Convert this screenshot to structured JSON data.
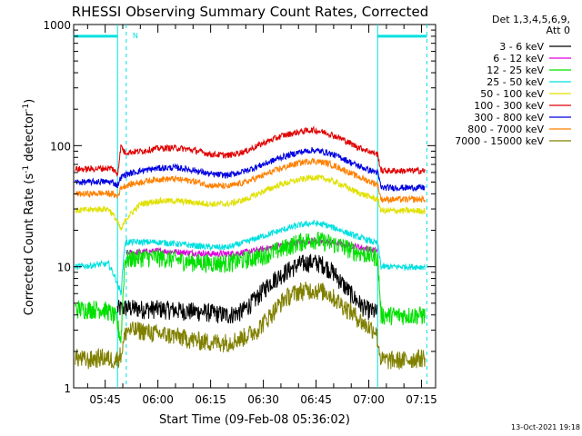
{
  "chart_data": {
    "type": "line",
    "title": "RHESSI Observing Summary Count Rates, Corrected",
    "xlabel": "Start Time (09-Feb-08 05:36:02)",
    "ylabel_prefix": "Corrected Count Rate (s",
    "ylabel_exp1": "-1",
    "ylabel_mid": " detector",
    "ylabel_exp2": "-1",
    "ylabel_suffix": ")",
    "y_scale": "log",
    "ylim": [
      1,
      1000
    ],
    "y_ticks": [
      {
        "value": 1,
        "label": "1"
      },
      {
        "value": 10,
        "label": "10"
      },
      {
        "value": 100,
        "label": "100"
      },
      {
        "value": 1000,
        "label": "1000"
      }
    ],
    "xlim_minutes": [
      36.03,
      139.0
    ],
    "x_ticks": [
      {
        "minute": 45,
        "label": "05:45"
      },
      {
        "minute": 60,
        "label": "06:00"
      },
      {
        "minute": 75,
        "label": "06:15"
      },
      {
        "minute": 90,
        "label": "06:30"
      },
      {
        "minute": 105,
        "label": "06:45"
      },
      {
        "minute": 120,
        "label": "07:00"
      },
      {
        "minute": 135,
        "label": "07:15"
      }
    ],
    "legend_header": [
      "Det 1,3,4,5,6,9,",
      "Att 0"
    ],
    "legend_placement": "right",
    "timestamp": "13-Oct-2021 19:18",
    "night_marker": "N",
    "night_level": 800,
    "night_intervals": [
      [
        36.0,
        48.5
      ],
      [
        122.5,
        136.5
      ]
    ],
    "dashed_lines_min": [
      51.0,
      136.5
    ],
    "solid_lines_min": [
      48.5,
      122.5
    ],
    "grid": false,
    "series": [
      {
        "name": "3 - 6 keV",
        "color": "#000000",
        "points": [
          [
            48.5,
            4.5
          ],
          [
            51,
            4.6
          ],
          [
            55,
            4.5
          ],
          [
            60,
            4.5
          ],
          [
            65,
            4.4
          ],
          [
            70,
            4.3
          ],
          [
            75,
            4.2
          ],
          [
            80,
            4.0
          ],
          [
            84,
            4.3
          ],
          [
            88,
            5.5
          ],
          [
            92,
            7.5
          ],
          [
            96,
            9.0
          ],
          [
            100,
            10.5
          ],
          [
            104,
            11.0
          ],
          [
            107,
            10.5
          ],
          [
            110,
            9.0
          ],
          [
            113,
            7.0
          ],
          [
            116,
            5.5
          ],
          [
            119,
            4.5
          ],
          [
            121,
            4.3
          ],
          [
            122.5,
            4.2
          ]
        ]
      },
      {
        "name": "6 - 12 keV",
        "color": "#e000e0",
        "points": [
          [
            51,
            13
          ],
          [
            55,
            13.2
          ],
          [
            60,
            13.5
          ],
          [
            65,
            13.3
          ],
          [
            70,
            13
          ],
          [
            75,
            12.8
          ],
          [
            80,
            12.8
          ],
          [
            85,
            13.2
          ],
          [
            90,
            14
          ],
          [
            95,
            15
          ],
          [
            100,
            16
          ],
          [
            104,
            16.5
          ],
          [
            108,
            16
          ],
          [
            112,
            15.5
          ],
          [
            116,
            14.8
          ],
          [
            120,
            14
          ],
          [
            122.5,
            13.5
          ]
        ]
      },
      {
        "name": "12 - 25 keV",
        "color": "#00e000",
        "points": [
          [
            36.5,
            4.5
          ],
          [
            40,
            4.5
          ],
          [
            44,
            4.5
          ],
          [
            46,
            4.3
          ],
          [
            48,
            3.8
          ],
          [
            49.5,
            2.5
          ],
          [
            50.5,
            11
          ],
          [
            51,
            11.5
          ],
          [
            55,
            12
          ],
          [
            60,
            12
          ],
          [
            65,
            11.5
          ],
          [
            70,
            11
          ],
          [
            75,
            10.8
          ],
          [
            80,
            10.8
          ],
          [
            85,
            11.5
          ],
          [
            90,
            12.5
          ],
          [
            95,
            14
          ],
          [
            100,
            16
          ],
          [
            104,
            17
          ],
          [
            108,
            16
          ],
          [
            112,
            15
          ],
          [
            116,
            13.5
          ],
          [
            120,
            12.5
          ],
          [
            122.5,
            12
          ],
          [
            123.5,
            4
          ],
          [
            130,
            4
          ],
          [
            136,
            4
          ]
        ]
      },
      {
        "name": "25 - 50 keV",
        "color": "#00e0e0",
        "points": [
          [
            36.5,
            10
          ],
          [
            40,
            10.2
          ],
          [
            44,
            10.5
          ],
          [
            46,
            10.5
          ],
          [
            48,
            8.0
          ],
          [
            49.5,
            6.0
          ],
          [
            50.5,
            15
          ],
          [
            51,
            16
          ],
          [
            55,
            16
          ],
          [
            60,
            16
          ],
          [
            65,
            15.5
          ],
          [
            70,
            15
          ],
          [
            75,
            14.5
          ],
          [
            80,
            14.5
          ],
          [
            85,
            16
          ],
          [
            90,
            18
          ],
          [
            95,
            20
          ],
          [
            100,
            22
          ],
          [
            104,
            23
          ],
          [
            108,
            22
          ],
          [
            112,
            20
          ],
          [
            116,
            18
          ],
          [
            120,
            16.5
          ],
          [
            122.5,
            15.5
          ],
          [
            123.5,
            10
          ],
          [
            130,
            10
          ],
          [
            136,
            10
          ]
        ]
      },
      {
        "name": "50 - 100 keV",
        "color": "#e0e000",
        "points": [
          [
            36.5,
            29
          ],
          [
            40,
            29.5
          ],
          [
            44,
            30
          ],
          [
            46,
            30
          ],
          [
            48,
            25
          ],
          [
            49.5,
            20
          ],
          [
            51,
            25
          ],
          [
            55,
            33
          ],
          [
            60,
            35
          ],
          [
            65,
            35
          ],
          [
            70,
            34
          ],
          [
            75,
            33
          ],
          [
            80,
            33
          ],
          [
            85,
            36
          ],
          [
            90,
            42
          ],
          [
            95,
            48
          ],
          [
            100,
            52
          ],
          [
            104,
            55
          ],
          [
            108,
            53
          ],
          [
            112,
            48
          ],
          [
            116,
            42
          ],
          [
            120,
            38
          ],
          [
            122.5,
            36
          ],
          [
            123.5,
            29
          ],
          [
            130,
            29
          ],
          [
            136,
            29
          ]
        ]
      },
      {
        "name": "100 - 300 keV",
        "color": "#e00000",
        "points": [
          [
            36.5,
            64
          ],
          [
            40,
            64
          ],
          [
            44,
            65
          ],
          [
            47,
            65
          ],
          [
            48.5,
            58
          ],
          [
            49.5,
            100
          ],
          [
            50.5,
            88
          ],
          [
            55,
            90
          ],
          [
            60,
            95
          ],
          [
            65,
            96
          ],
          [
            70,
            92
          ],
          [
            75,
            85
          ],
          [
            80,
            83
          ],
          [
            85,
            90
          ],
          [
            90,
            105
          ],
          [
            95,
            120
          ],
          [
            100,
            130
          ],
          [
            104,
            135
          ],
          [
            108,
            128
          ],
          [
            112,
            115
          ],
          [
            116,
            100
          ],
          [
            120,
            90
          ],
          [
            122.5,
            85
          ],
          [
            123.5,
            62
          ],
          [
            130,
            62
          ],
          [
            136,
            62
          ]
        ]
      },
      {
        "name": "300 - 800 keV",
        "color": "#0000e0",
        "points": [
          [
            36.5,
            50
          ],
          [
            40,
            50
          ],
          [
            44,
            50.5
          ],
          [
            47,
            50
          ],
          [
            48.5,
            47
          ],
          [
            49.5,
            55
          ],
          [
            51,
            58
          ],
          [
            55,
            62
          ],
          [
            60,
            65
          ],
          [
            65,
            66
          ],
          [
            70,
            63
          ],
          [
            75,
            58
          ],
          [
            80,
            57
          ],
          [
            85,
            62
          ],
          [
            90,
            70
          ],
          [
            95,
            80
          ],
          [
            100,
            88
          ],
          [
            104,
            92
          ],
          [
            108,
            88
          ],
          [
            112,
            80
          ],
          [
            116,
            70
          ],
          [
            120,
            63
          ],
          [
            122.5,
            60
          ],
          [
            123.5,
            45
          ],
          [
            130,
            45
          ],
          [
            136,
            45
          ]
        ]
      },
      {
        "name": "800 - 7000 keV",
        "color": "#ff8000",
        "points": [
          [
            36.5,
            40
          ],
          [
            40,
            40
          ],
          [
            44,
            40.5
          ],
          [
            47,
            40
          ],
          [
            48.5,
            38
          ],
          [
            49.5,
            45
          ],
          [
            51,
            47
          ],
          [
            55,
            50
          ],
          [
            60,
            53
          ],
          [
            65,
            53
          ],
          [
            70,
            51
          ],
          [
            75,
            47
          ],
          [
            80,
            46
          ],
          [
            85,
            50
          ],
          [
            90,
            57
          ],
          [
            95,
            65
          ],
          [
            100,
            72
          ],
          [
            104,
            75
          ],
          [
            108,
            72
          ],
          [
            112,
            65
          ],
          [
            116,
            57
          ],
          [
            120,
            51
          ],
          [
            122.5,
            48
          ],
          [
            123.5,
            36
          ],
          [
            130,
            36
          ],
          [
            136,
            36
          ]
        ]
      },
      {
        "name": "7000 - 15000 keV",
        "color": "#808000",
        "points": [
          [
            36.5,
            1.8
          ],
          [
            40,
            1.7
          ],
          [
            44,
            1.8
          ],
          [
            48,
            1.7
          ],
          [
            49.5,
            1.9
          ],
          [
            51,
            3.0
          ],
          [
            55,
            3.0
          ],
          [
            60,
            2.8
          ],
          [
            65,
            2.7
          ],
          [
            70,
            2.5
          ],
          [
            75,
            2.4
          ],
          [
            80,
            2.4
          ],
          [
            84,
            2.6
          ],
          [
            88,
            3.0
          ],
          [
            92,
            4.0
          ],
          [
            96,
            5.5
          ],
          [
            100,
            6.3
          ],
          [
            104,
            6.5
          ],
          [
            108,
            6.2
          ],
          [
            112,
            5.0
          ],
          [
            116,
            4.0
          ],
          [
            119,
            3.3
          ],
          [
            122,
            3.0
          ],
          [
            123.5,
            1.7
          ],
          [
            130,
            1.7
          ],
          [
            136,
            1.8
          ]
        ]
      }
    ]
  }
}
